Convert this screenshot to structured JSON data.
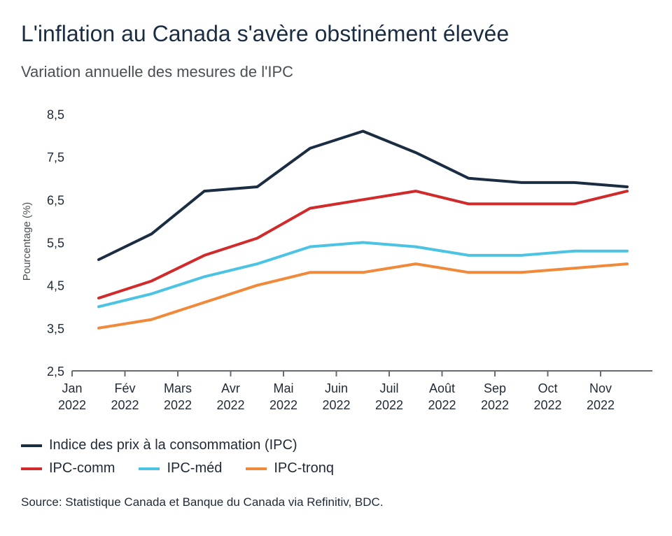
{
  "title": "L'inflation au Canada s'avère obstinément élevée",
  "subtitle": "Variation annuelle des mesures de l'IPC",
  "source": "Source: Statistique Canada et Banque du Canada via Refinitiv, BDC.",
  "chart_data": {
    "type": "line",
    "ylabel": "Pourcentage (%)",
    "ylim": [
      2.5,
      8.5
    ],
    "y_ticks": [
      "8,5",
      "7,5",
      "6,5",
      "5,5",
      "4,5",
      "3,5",
      "2,5"
    ],
    "y_tick_values": [
      8.5,
      7.5,
      6.5,
      5.5,
      4.5,
      3.5,
      2.5
    ],
    "x_tick_labels": [
      {
        "month": "Jan",
        "year": "2022"
      },
      {
        "month": "Fév",
        "year": "2022"
      },
      {
        "month": "Mars",
        "year": "2022"
      },
      {
        "month": "Avr",
        "year": "2022"
      },
      {
        "month": "Mai",
        "year": "2022"
      },
      {
        "month": "Juin",
        "year": "2022"
      },
      {
        "month": "Juil",
        "year": "2022"
      },
      {
        "month": "Août",
        "year": "2022"
      },
      {
        "month": "Sep",
        "year": "2022"
      },
      {
        "month": "Oct",
        "year": "2022"
      },
      {
        "month": "Nov",
        "year": "2022"
      }
    ],
    "series": [
      {
        "name": "Indice des prix à la consommation (IPC)",
        "color": "#1b2d42",
        "values": [
          5.1,
          5.7,
          6.7,
          6.8,
          7.7,
          8.1,
          7.6,
          7.0,
          6.9,
          6.9,
          6.8
        ]
      },
      {
        "name": "IPC-comm",
        "color": "#d12a2a",
        "values": [
          4.2,
          4.6,
          5.2,
          5.6,
          6.3,
          6.5,
          6.7,
          6.4,
          6.4,
          6.4,
          6.7
        ]
      },
      {
        "name": "IPC-méd",
        "color": "#4cc3e3",
        "values": [
          4.0,
          4.3,
          4.7,
          5.0,
          5.4,
          5.5,
          5.4,
          5.2,
          5.2,
          5.3,
          5.3
        ]
      },
      {
        "name": "IPC-tronq",
        "color": "#f0893a",
        "values": [
          3.5,
          3.7,
          4.1,
          4.5,
          4.8,
          4.8,
          5.0,
          4.8,
          4.8,
          4.9,
          5.0
        ]
      }
    ],
    "grid": false,
    "legend_position": "bottom-left"
  }
}
